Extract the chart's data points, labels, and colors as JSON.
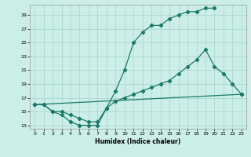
{
  "xlabel": "Humidex (Indice chaleur)",
  "bg_color": "#cceee8",
  "grid_color": "#aad8d0",
  "line_color": "#1a7a6a",
  "line1_x": [
    0,
    1,
    2,
    3,
    4,
    5,
    6,
    7,
    8,
    9,
    10,
    11,
    12,
    13,
    14,
    15,
    16,
    17,
    18,
    19,
    20
  ],
  "line1_y": [
    16,
    16,
    15,
    14.5,
    13.5,
    13,
    13,
    13,
    15.5,
    18,
    21,
    25,
    26.5,
    27.5,
    27.5,
    28.5,
    29,
    29.5,
    29.5,
    30,
    30
  ],
  "line2_x": [
    0,
    1,
    2,
    3,
    4,
    5,
    6,
    7,
    8,
    9,
    10,
    11,
    12,
    13,
    14,
    15,
    16,
    17,
    18,
    19,
    20,
    21,
    22,
    23
  ],
  "line2_y": [
    16,
    16,
    15,
    15,
    14.5,
    14,
    13.5,
    13.5,
    15.5,
    16.5,
    17,
    17.5,
    18,
    18.5,
    19,
    19.5,
    20.5,
    21.5,
    22.5,
    24,
    21.5,
    20.5,
    19,
    17.5
  ],
  "line3_x": [
    0,
    23
  ],
  "line3_y": [
    16,
    17.5
  ],
  "xlim": [
    -0.5,
    23.5
  ],
  "ylim": [
    12.5,
    30.5
  ],
  "yticks": [
    13,
    15,
    17,
    19,
    21,
    23,
    25,
    27,
    29
  ],
  "xticks": [
    0,
    1,
    2,
    3,
    4,
    5,
    6,
    7,
    8,
    9,
    10,
    11,
    12,
    13,
    14,
    15,
    16,
    17,
    18,
    19,
    20,
    21,
    22,
    23
  ]
}
